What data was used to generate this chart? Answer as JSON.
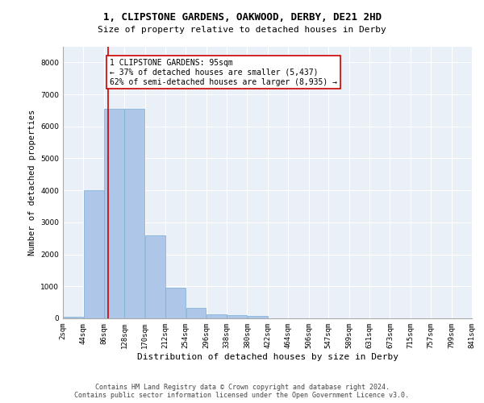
{
  "title1": "1, CLIPSTONE GARDENS, OAKWOOD, DERBY, DE21 2HD",
  "title2": "Size of property relative to detached houses in Derby",
  "xlabel": "Distribution of detached houses by size in Derby",
  "ylabel": "Number of detached properties",
  "bar_values": [
    60,
    4000,
    6550,
    6550,
    2600,
    950,
    320,
    120,
    90,
    70,
    0,
    0,
    0,
    0,
    0,
    0,
    0,
    0,
    0,
    0
  ],
  "bin_edges": [
    2,
    44,
    86,
    128,
    170,
    212,
    254,
    296,
    338,
    380,
    422,
    464,
    506,
    547,
    589,
    631,
    673,
    715,
    757,
    799,
    841
  ],
  "tick_labels": [
    "2sqm",
    "44sqm",
    "86sqm",
    "128sqm",
    "170sqm",
    "212sqm",
    "254sqm",
    "296sqm",
    "338sqm",
    "380sqm",
    "422sqm",
    "464sqm",
    "506sqm",
    "547sqm",
    "589sqm",
    "631sqm",
    "673sqm",
    "715sqm",
    "757sqm",
    "799sqm",
    "841sqm"
  ],
  "bar_color": "#aec6e8",
  "bar_edge_color": "#7aadd4",
  "vline_x": 95,
  "vline_color": "#cc0000",
  "annotation_line1": "1 CLIPSTONE GARDENS: 95sqm",
  "annotation_line2": "← 37% of detached houses are smaller (5,437)",
  "annotation_line3": "62% of semi-detached houses are larger (8,935) →",
  "annotation_box_color": "#ffffff",
  "annotation_box_edgecolor": "#cc0000",
  "ylim": [
    0,
    8500
  ],
  "yticks": [
    0,
    1000,
    2000,
    3000,
    4000,
    5000,
    6000,
    7000,
    8000
  ],
  "bg_color": "#eaf0f8",
  "footer_text": "Contains HM Land Registry data © Crown copyright and database right 2024.\nContains public sector information licensed under the Open Government Licence v3.0.",
  "title1_fontsize": 9,
  "title2_fontsize": 8,
  "xlabel_fontsize": 8,
  "ylabel_fontsize": 7.5,
  "tick_fontsize": 6.5,
  "annotation_fontsize": 7,
  "footer_fontsize": 6
}
